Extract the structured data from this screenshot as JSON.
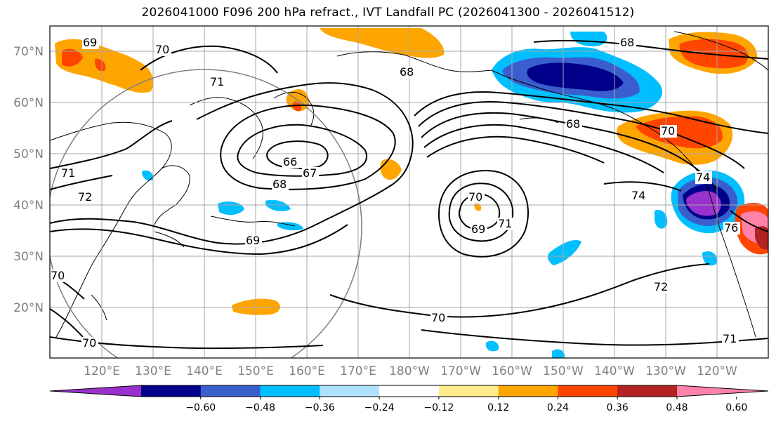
{
  "title": "2026041000 F096 200 hPa refract., IVT Landfall PC (2026041300 - 2026041512)",
  "lat_labels": [
    "70°N",
    "60°N",
    "50°N",
    "40°N",
    "30°N",
    "20°N"
  ],
  "lon_labels": [
    "120°E",
    "130°E",
    "140°E",
    "150°E",
    "160°E",
    "170°E",
    "180°W",
    "170°W",
    "160°W",
    "150°W",
    "140°W",
    "130°W",
    "120°W"
  ],
  "colorbar": {
    "colors": [
      "#9932CC",
      "#00008B",
      "#3A5FCD",
      "#00BFFF",
      "#B0E2FF",
      "#FFFFFF",
      "#FFEC8B",
      "#FFA500",
      "#FF4500",
      "#B22222",
      "#FF82AB"
    ],
    "tick_labels": [
      "−0.60",
      "−0.48",
      "−0.36",
      "−0.24",
      "−0.12",
      "0.12",
      "0.24",
      "0.36",
      "0.48",
      "0.60"
    ]
  },
  "contour_labels": [
    "69",
    "70",
    "71",
    "66",
    "67",
    "68",
    "69",
    "68",
    "68",
    "70",
    "69",
    "71",
    "70",
    "71",
    "72",
    "71",
    "72",
    "70",
    "70",
    "74",
    "74",
    "76",
    "68",
    "70"
  ]
}
